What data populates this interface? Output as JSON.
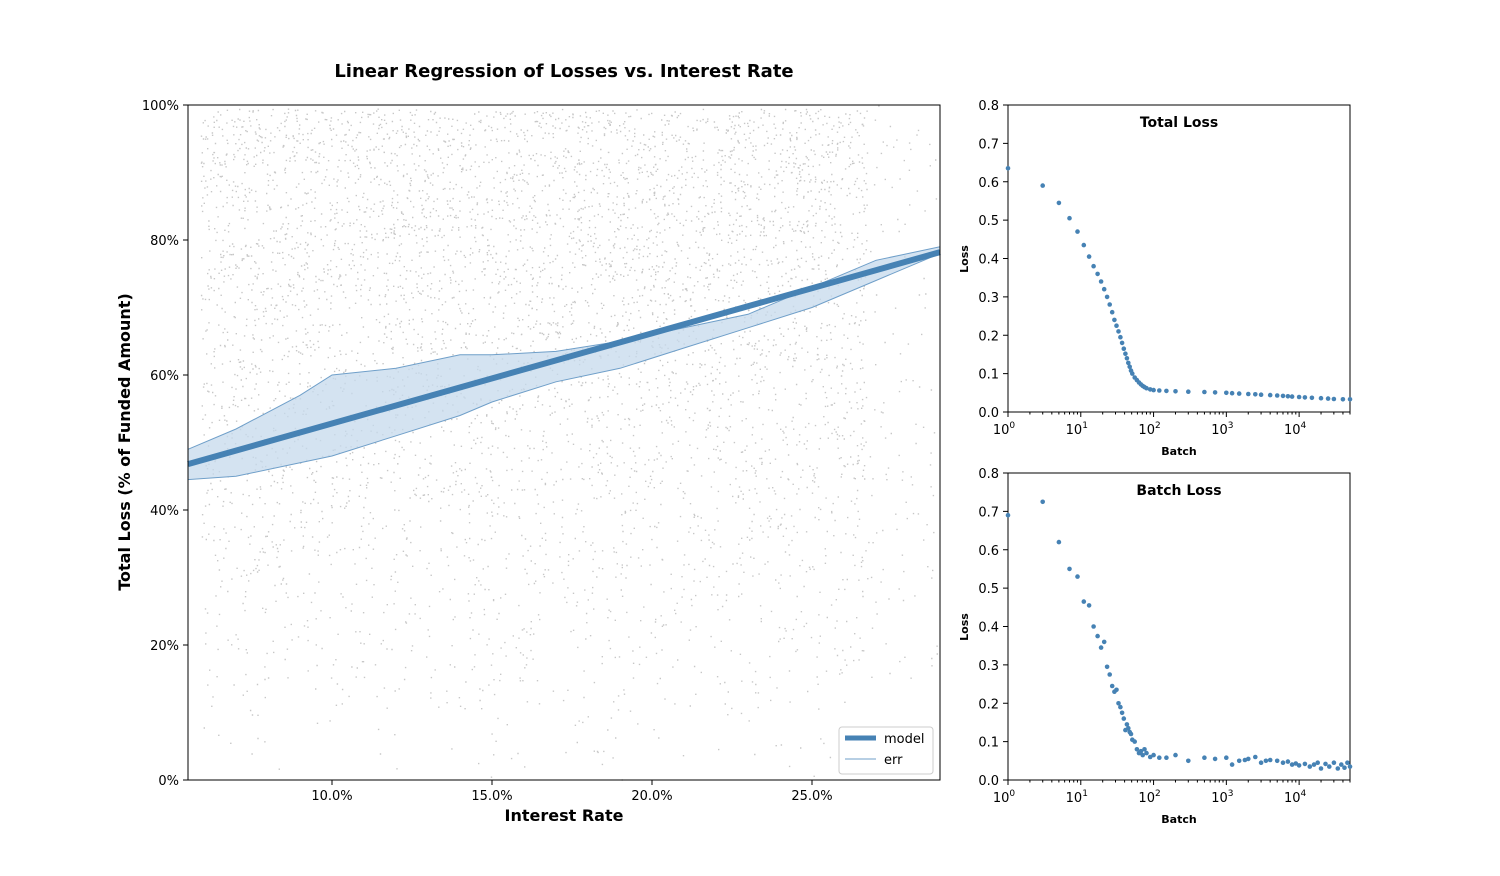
{
  "chart_data": [
    {
      "type": "scatter",
      "title": "Linear Regression of Losses vs. Interest Rate",
      "xlabel": "Interest Rate",
      "ylabel": "Total Loss (% of Funded Amount)",
      "xlim": [
        0.055,
        0.29
      ],
      "ylim": [
        0,
        1
      ],
      "xticks": [
        0.1,
        0.15,
        0.2,
        0.25
      ],
      "xtick_labels": [
        "10.0%",
        "15.0%",
        "20.0%",
        "25.0%"
      ],
      "yticks": [
        0,
        0.2,
        0.4,
        0.6,
        0.8,
        1.0
      ],
      "ytick_labels": [
        "0%",
        "20%",
        "40%",
        "60%",
        "80%",
        "100%"
      ],
      "grid": false,
      "legend_position": "lower-right",
      "colors": {
        "model": "#4682b4",
        "band_fill": "#c6d9ec",
        "scatter": "#b4b4b4"
      },
      "series": [
        {
          "name": "model",
          "kind": "line",
          "x": [
            0.055,
            0.29
          ],
          "y": [
            0.468,
            0.782
          ]
        },
        {
          "name": "err",
          "kind": "band",
          "x": [
            0.055,
            0.07,
            0.09,
            0.1,
            0.12,
            0.14,
            0.15,
            0.17,
            0.19,
            0.21,
            0.23,
            0.25,
            0.26,
            0.27,
            0.29
          ],
          "upper": [
            0.49,
            0.52,
            0.57,
            0.6,
            0.61,
            0.63,
            0.63,
            0.635,
            0.65,
            0.67,
            0.69,
            0.73,
            0.75,
            0.77,
            0.79
          ],
          "lower": [
            0.445,
            0.45,
            0.47,
            0.48,
            0.51,
            0.54,
            0.56,
            0.59,
            0.61,
            0.64,
            0.67,
            0.7,
            0.72,
            0.74,
            0.78
          ]
        }
      ],
      "scatter_note_visible": false
    },
    {
      "type": "scatter",
      "title": "Total Loss",
      "xlabel": "Batch",
      "ylabel": "Loss",
      "xscale": "log",
      "xlim": [
        1,
        50000
      ],
      "ylim": [
        0,
        0.8
      ],
      "xticks": [
        1,
        10,
        100,
        1000,
        10000
      ],
      "xtick_labels": [
        [
          "10",
          "0"
        ],
        [
          "10",
          "1"
        ],
        [
          "10",
          "2"
        ],
        [
          "10",
          "3"
        ],
        [
          "10",
          "4"
        ]
      ],
      "yticks": [
        0,
        0.1,
        0.2,
        0.3,
        0.4,
        0.5,
        0.6,
        0.7,
        0.8
      ],
      "ytick_labels": [
        "0.0",
        "0.1",
        "0.2",
        "0.3",
        "0.4",
        "0.5",
        "0.6",
        "0.7",
        "0.8"
      ],
      "color": "#4682b4",
      "x": [
        1,
        3,
        5,
        7,
        9,
        11,
        13,
        15,
        17,
        19,
        21,
        23,
        25,
        27,
        29,
        31,
        33,
        35,
        37,
        39,
        41,
        43,
        45,
        47,
        49,
        51,
        55,
        59,
        63,
        67,
        71,
        75,
        80,
        90,
        100,
        120,
        150,
        200,
        300,
        500,
        700,
        1000,
        1200,
        1500,
        2000,
        2500,
        3000,
        4000,
        5000,
        6000,
        7000,
        8000,
        10000,
        12000,
        15000,
        20000,
        25000,
        30000,
        40000,
        50000
      ],
      "y": [
        0.635,
        0.59,
        0.545,
        0.505,
        0.47,
        0.435,
        0.405,
        0.38,
        0.36,
        0.34,
        0.32,
        0.3,
        0.28,
        0.26,
        0.24,
        0.225,
        0.21,
        0.195,
        0.18,
        0.165,
        0.152,
        0.14,
        0.128,
        0.118,
        0.108,
        0.1,
        0.09,
        0.083,
        0.077,
        0.072,
        0.068,
        0.065,
        0.062,
        0.059,
        0.057,
        0.056,
        0.055,
        0.054,
        0.053,
        0.052,
        0.051,
        0.05,
        0.049,
        0.048,
        0.047,
        0.046,
        0.045,
        0.044,
        0.043,
        0.042,
        0.041,
        0.04,
        0.039,
        0.038,
        0.037,
        0.036,
        0.035,
        0.034,
        0.033,
        0.033
      ]
    },
    {
      "type": "scatter",
      "title": "Batch Loss",
      "xlabel": "Batch",
      "ylabel": "Loss",
      "xscale": "log",
      "xlim": [
        1,
        50000
      ],
      "ylim": [
        0,
        0.8
      ],
      "xticks": [
        1,
        10,
        100,
        1000,
        10000
      ],
      "xtick_labels": [
        [
          "10",
          "0"
        ],
        [
          "10",
          "1"
        ],
        [
          "10",
          "2"
        ],
        [
          "10",
          "3"
        ],
        [
          "10",
          "4"
        ]
      ],
      "yticks": [
        0,
        0.1,
        0.2,
        0.3,
        0.4,
        0.5,
        0.6,
        0.7,
        0.8
      ],
      "ytick_labels": [
        "0.0",
        "0.1",
        "0.2",
        "0.3",
        "0.4",
        "0.5",
        "0.6",
        "0.7",
        "0.8"
      ],
      "color": "#4682b4",
      "x": [
        1,
        3,
        5,
        7,
        9,
        11,
        13,
        15,
        17,
        19,
        21,
        23,
        25,
        27,
        29,
        31,
        33,
        35,
        37,
        39,
        41,
        43,
        45,
        47,
        49,
        51,
        55,
        59,
        63,
        67,
        71,
        75,
        80,
        90,
        100,
        120,
        150,
        200,
        300,
        500,
        700,
        1000,
        1200,
        1500,
        1800,
        2000,
        2500,
        3000,
        3500,
        4000,
        5000,
        6000,
        7000,
        8000,
        9000,
        10000,
        12000,
        14000,
        16000,
        18000,
        20000,
        23000,
        26000,
        30000,
        34000,
        38000,
        42000,
        46000,
        50000
      ],
      "y": [
        0.69,
        0.725,
        0.62,
        0.55,
        0.53,
        0.465,
        0.455,
        0.4,
        0.375,
        0.345,
        0.36,
        0.295,
        0.275,
        0.245,
        0.23,
        0.235,
        0.2,
        0.19,
        0.175,
        0.16,
        0.13,
        0.145,
        0.135,
        0.125,
        0.12,
        0.105,
        0.1,
        0.08,
        0.07,
        0.075,
        0.065,
        0.08,
        0.07,
        0.06,
        0.065,
        0.058,
        0.058,
        0.065,
        0.05,
        0.058,
        0.055,
        0.058,
        0.04,
        0.05,
        0.052,
        0.055,
        0.06,
        0.045,
        0.05,
        0.052,
        0.05,
        0.045,
        0.048,
        0.04,
        0.043,
        0.038,
        0.042,
        0.035,
        0.04,
        0.045,
        0.03,
        0.042,
        0.035,
        0.045,
        0.03,
        0.04,
        0.032,
        0.045,
        0.035
      ]
    }
  ],
  "legend": {
    "model_label": "model",
    "err_label": "err"
  }
}
